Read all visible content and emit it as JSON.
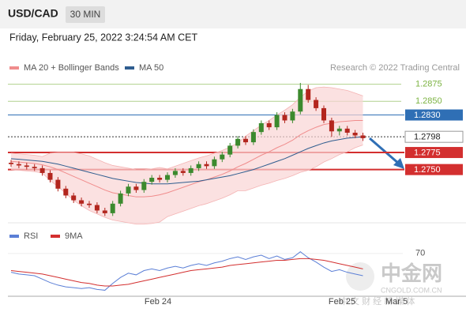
{
  "header": {
    "symbol": "USD/CAD",
    "interval": "30 MIN",
    "timestamp": "Friday, February 25, 2022 3:24:54 AM CET"
  },
  "watermark": {
    "brand": "中金网",
    "site": "CNGOLD.COM.CN",
    "slogan": "中 文 财 经 新 媒 体"
  },
  "chart_data": [
    {
      "type": "candlestick",
      "legend": [
        "MA 20 + Bollinger Bands",
        "MA 50"
      ],
      "legend_colors": [
        "#f08c8c",
        "#2f5d8f"
      ],
      "credit": "Research © 2022 Trading Central",
      "xlabels": [
        "Feb 24",
        "Feb 25",
        "Mar 5"
      ],
      "ylim": [
        1.2672,
        1.2892
      ],
      "up_color": "#3c8a2e",
      "down_color": "#b3261e",
      "open": [
        1.276,
        1.2758,
        1.2756,
        1.2754,
        1.2752,
        1.2745,
        1.2735,
        1.2722,
        1.2712,
        1.2705,
        1.27,
        1.2698,
        1.269,
        1.2686,
        1.27,
        1.2715,
        1.2725,
        1.272,
        1.2732,
        1.2738,
        1.2735,
        1.2742,
        1.2748,
        1.2745,
        1.2752,
        1.2758,
        1.2755,
        1.2765,
        1.2772,
        1.2785,
        1.2795,
        1.279,
        1.2805,
        1.2818,
        1.2812,
        1.283,
        1.2822,
        1.2835,
        1.2868,
        1.2852,
        1.284,
        1.2822,
        1.2806,
        1.281,
        1.2804,
        1.28
      ],
      "high": [
        1.2764,
        1.2762,
        1.276,
        1.2758,
        1.2756,
        1.2749,
        1.2739,
        1.2726,
        1.2716,
        1.2709,
        1.2704,
        1.2702,
        1.2694,
        1.2704,
        1.2719,
        1.2729,
        1.2729,
        1.2736,
        1.2742,
        1.2742,
        1.2746,
        1.2752,
        1.2752,
        1.2756,
        1.2762,
        1.2762,
        1.2769,
        1.2776,
        1.2789,
        1.2799,
        1.2799,
        1.2809,
        1.2822,
        1.2822,
        1.2834,
        1.2834,
        1.2839,
        1.2877,
        1.2874,
        1.2856,
        1.2844,
        1.2826,
        1.2814,
        1.2814,
        1.2808,
        1.2804
      ],
      "low": [
        1.2754,
        1.2752,
        1.275,
        1.2748,
        1.2741,
        1.2731,
        1.2718,
        1.2708,
        1.2701,
        1.2696,
        1.2694,
        1.2686,
        1.2682,
        1.2682,
        1.2696,
        1.2711,
        1.2716,
        1.2716,
        1.2728,
        1.2731,
        1.2731,
        1.2738,
        1.2741,
        1.2741,
        1.2748,
        1.2751,
        1.2751,
        1.2761,
        1.2768,
        1.2781,
        1.2786,
        1.2786,
        1.2801,
        1.2808,
        1.2808,
        1.2818,
        1.2818,
        1.2831,
        1.2848,
        1.2836,
        1.2818,
        1.2798,
        1.28,
        1.28,
        1.2796,
        1.2792
      ],
      "close": [
        1.2758,
        1.2756,
        1.2754,
        1.2752,
        1.2745,
        1.2735,
        1.2722,
        1.2712,
        1.2705,
        1.27,
        1.2698,
        1.269,
        1.2686,
        1.27,
        1.2715,
        1.2725,
        1.272,
        1.2732,
        1.2738,
        1.2735,
        1.2742,
        1.2748,
        1.2745,
        1.2752,
        1.2758,
        1.2755,
        1.2765,
        1.2772,
        1.2785,
        1.2795,
        1.279,
        1.2805,
        1.2818,
        1.2812,
        1.283,
        1.2822,
        1.2835,
        1.2868,
        1.2852,
        1.284,
        1.2822,
        1.2806,
        1.281,
        1.2804,
        1.28,
        1.2796
      ],
      "ma20": [
        1.2762,
        1.2761,
        1.276,
        1.2759,
        1.2757,
        1.2754,
        1.275,
        1.2745,
        1.274,
        1.2735,
        1.273,
        1.2725,
        1.272,
        1.2716,
        1.2714,
        1.2712,
        1.271,
        1.271,
        1.2711,
        1.2713,
        1.2716,
        1.272,
        1.2724,
        1.2728,
        1.2732,
        1.2735,
        1.2739,
        1.2743,
        1.2748,
        1.2754,
        1.2759,
        1.2765,
        1.2771,
        1.2776,
        1.2782,
        1.2787,
        1.2793,
        1.2801,
        1.2807,
        1.2812,
        1.2816,
        1.2818,
        1.282,
        1.2821,
        1.2822,
        1.2822
      ],
      "upper": [
        1.2774,
        1.2773,
        1.2772,
        1.2771,
        1.2769,
        1.2774,
        1.2775,
        1.2775,
        1.2775,
        1.2773,
        1.277,
        1.2765,
        1.276,
        1.2756,
        1.2754,
        1.2752,
        1.275,
        1.275,
        1.2751,
        1.2753,
        1.2751,
        1.2755,
        1.2759,
        1.2763,
        1.2767,
        1.277,
        1.2774,
        1.2778,
        1.2783,
        1.2789,
        1.2799,
        1.2807,
        1.2815,
        1.2822,
        1.283,
        1.2837,
        1.2845,
        1.2856,
        1.2865,
        1.287,
        1.2871,
        1.287,
        1.2868,
        1.2866,
        1.2862,
        1.2858
      ],
      "lower": [
        1.275,
        1.2749,
        1.2748,
        1.2747,
        1.2745,
        1.2734,
        1.2725,
        1.2715,
        1.2705,
        1.2697,
        1.269,
        1.2685,
        1.268,
        1.2676,
        1.2674,
        1.2672,
        1.267,
        1.267,
        1.2671,
        1.2673,
        1.2681,
        1.2685,
        1.2689,
        1.2693,
        1.2697,
        1.27,
        1.2704,
        1.2708,
        1.2713,
        1.2719,
        1.2719,
        1.2723,
        1.2727,
        1.273,
        1.2734,
        1.2737,
        1.2741,
        1.2746,
        1.2749,
        1.2754,
        1.2761,
        1.2766,
        1.2772,
        1.2776,
        1.2782,
        1.2786
      ],
      "ma50": [
        1.2766,
        1.2765,
        1.2764,
        1.2763,
        1.2762,
        1.276,
        1.2758,
        1.2755,
        1.2752,
        1.2749,
        1.2746,
        1.2743,
        1.274,
        1.2737,
        1.2735,
        1.2733,
        1.2731,
        1.273,
        1.2729,
        1.2729,
        1.2729,
        1.273,
        1.2731,
        1.2732,
        1.2733,
        1.2735,
        1.2737,
        1.2739,
        1.2741,
        1.2744,
        1.2747,
        1.275,
        1.2754,
        1.2758,
        1.2762,
        1.2766,
        1.2771,
        1.2776,
        1.2781,
        1.2785,
        1.2789,
        1.2792,
        1.2794,
        1.2796,
        1.2797,
        1.2798
      ],
      "levels": [
        {
          "value": 1.2875,
          "color": "#7cb342",
          "style": "line"
        },
        {
          "value": 1.285,
          "label": "1.2850",
          "color": "#7cb342",
          "style": "line"
        },
        {
          "value": 1.283,
          "label": "1.2830",
          "color": "#2f6fb5",
          "style": "box"
        },
        {
          "value": 1.2798,
          "color": "#333333",
          "style": "dotted"
        },
        {
          "value": 1.2775,
          "color": "#d32f2f",
          "style": "thick"
        },
        {
          "value": 1.275,
          "label": "1.2750",
          "color": "#d32f2f",
          "style": "thick"
        }
      ]
    },
    {
      "type": "line",
      "series": [
        {
          "name": "RSI",
          "color": "#5b7fd6",
          "values": [
            48,
            46,
            45,
            44,
            40,
            36,
            33,
            31,
            30,
            29,
            30,
            28,
            27,
            35,
            42,
            47,
            45,
            50,
            52,
            50,
            53,
            55,
            53,
            56,
            58,
            56,
            59,
            61,
            64,
            66,
            63,
            66,
            68,
            64,
            67,
            63,
            65,
            72,
            65,
            60,
            54,
            49,
            51,
            48,
            46,
            44
          ]
        },
        {
          "name": "9MA",
          "color": "#d32f2f",
          "values": [
            50,
            49,
            48,
            47,
            46,
            44,
            42,
            40,
            38,
            36,
            35,
            33,
            32,
            32,
            33,
            34,
            36,
            38,
            40,
            42,
            44,
            46,
            48,
            50,
            51,
            52,
            53,
            54,
            56,
            57,
            58,
            59,
            60,
            61,
            62,
            62,
            63,
            64,
            64,
            63,
            62,
            60,
            58,
            56,
            54,
            52
          ]
        }
      ],
      "ylim": [
        20,
        80
      ],
      "yticks": [
        70
      ]
    }
  ]
}
